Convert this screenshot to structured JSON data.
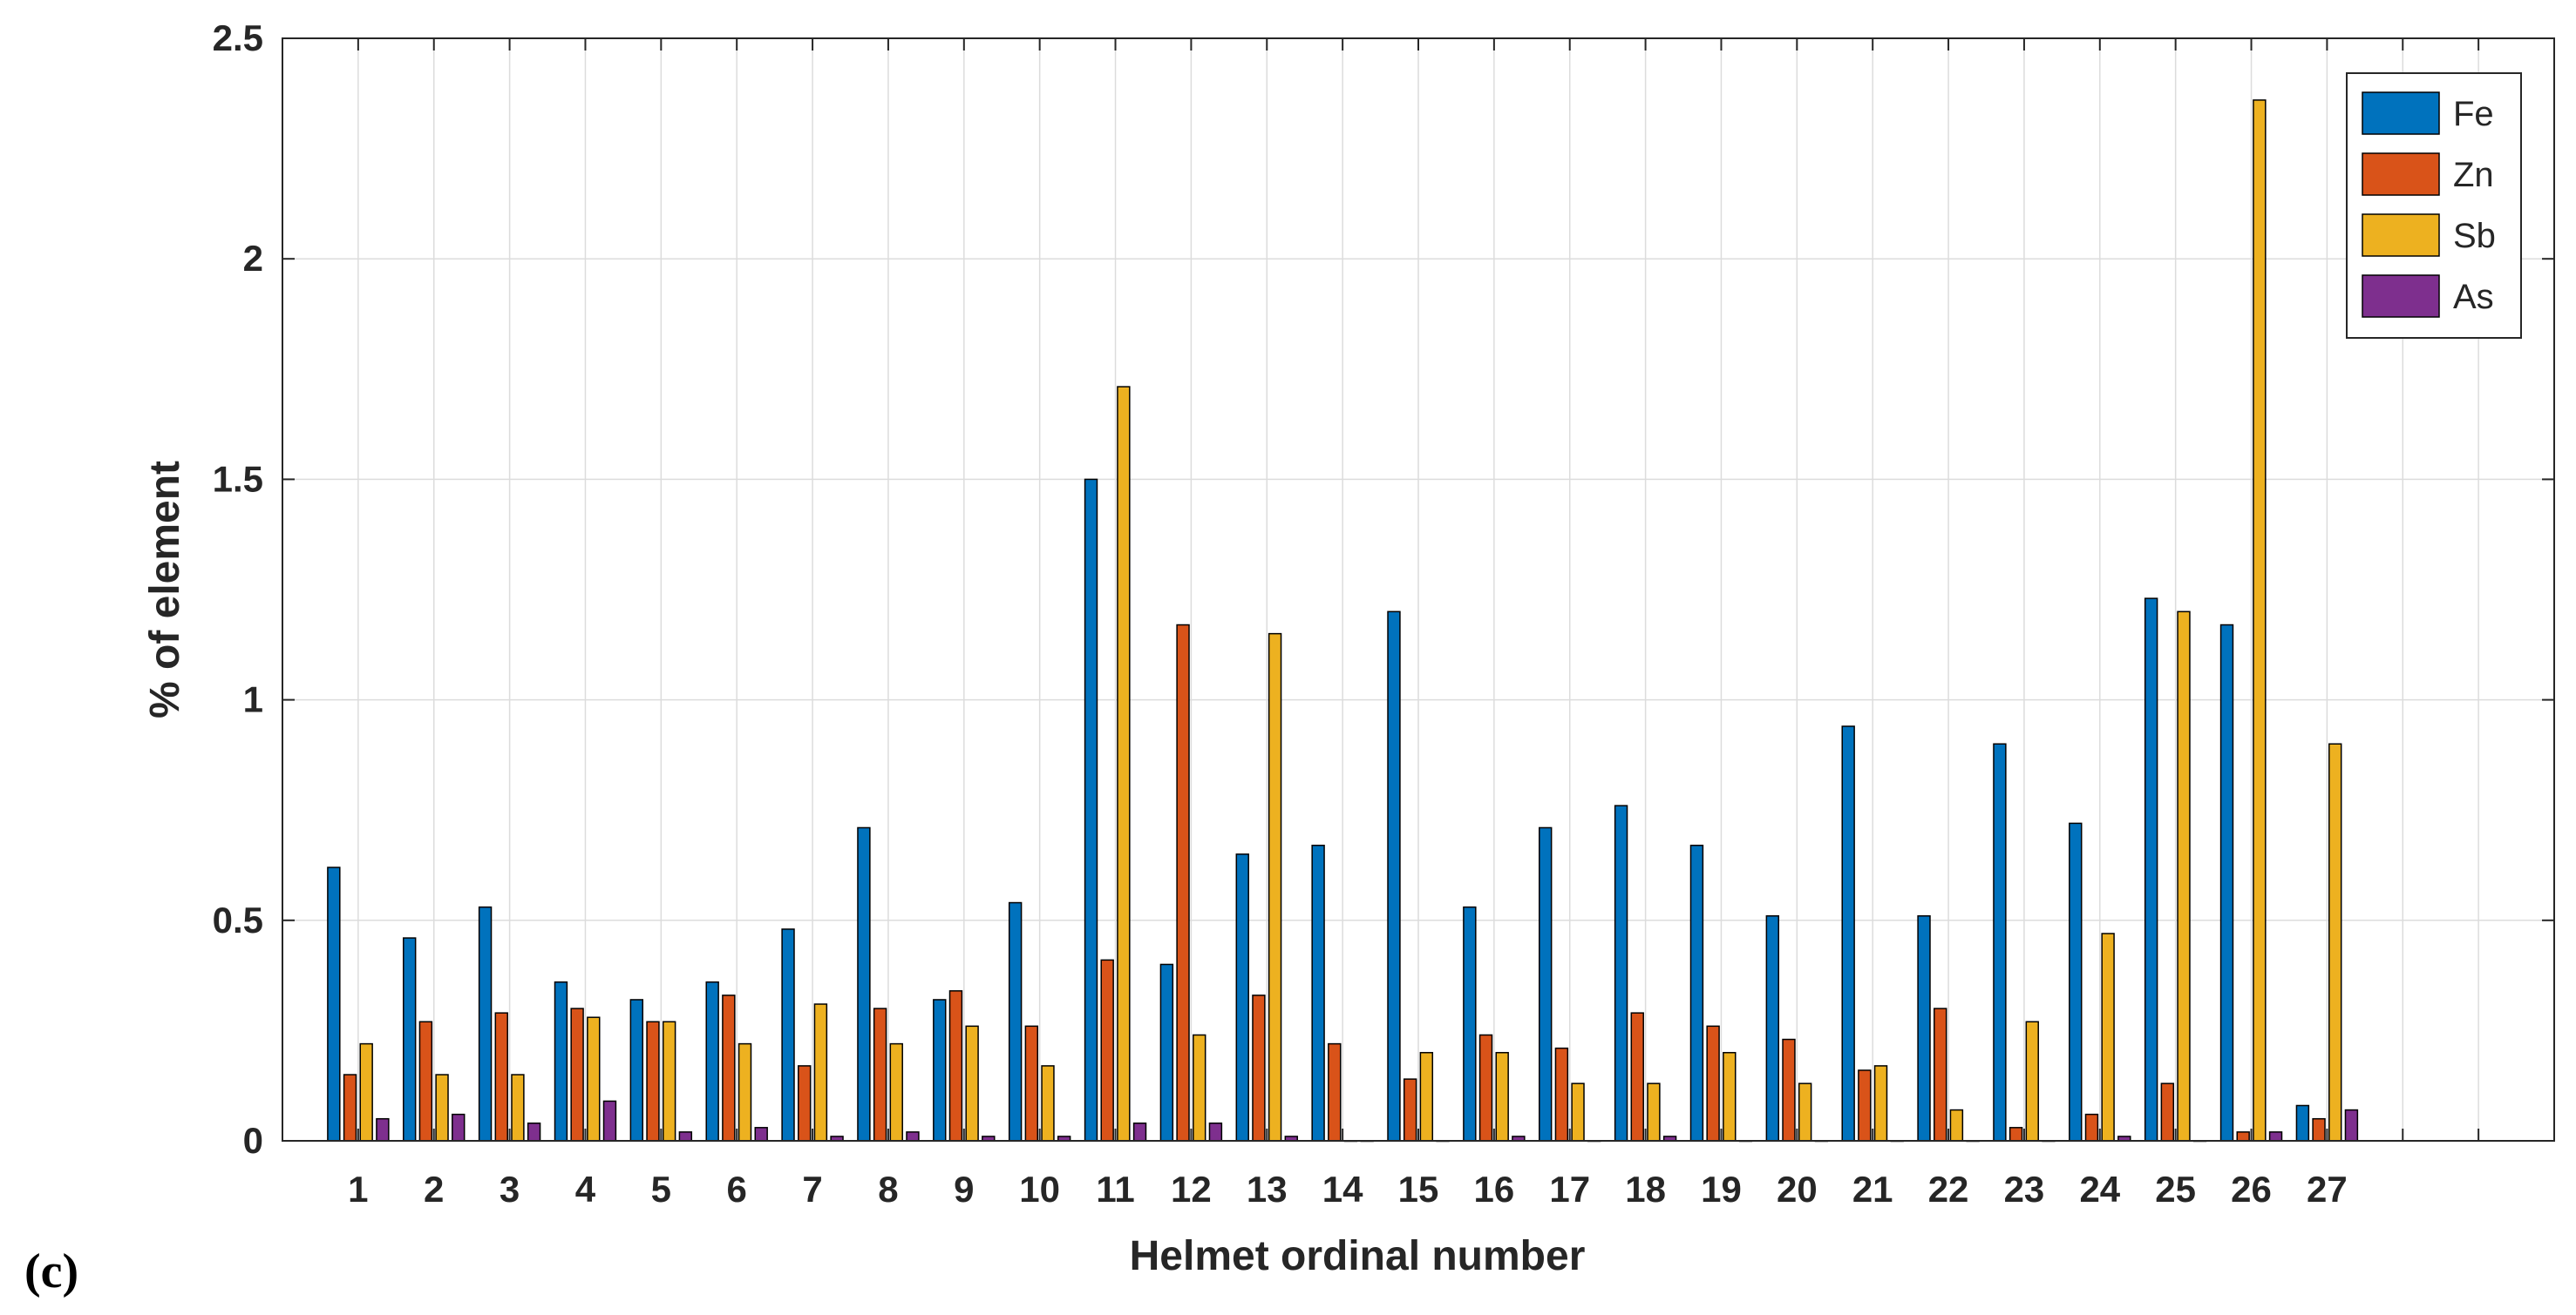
{
  "panel_label": "(c)",
  "chart_data": {
    "type": "bar",
    "xlabel": "Helmet ordinal number",
    "ylabel": "% of element",
    "categories": [
      "1",
      "2",
      "3",
      "4",
      "5",
      "6",
      "7",
      "8",
      "9",
      "10",
      "11",
      "12",
      "13",
      "14",
      "15",
      "16",
      "17",
      "18",
      "19",
      "20",
      "21",
      "22",
      "23",
      "24",
      "25",
      "26",
      "27"
    ],
    "xlim": [
      0,
      30
    ],
    "ylim": [
      0,
      2.5
    ],
    "yticks": [
      0,
      0.5,
      1,
      1.5,
      2,
      2.5
    ],
    "ytick_labels": [
      "0",
      "0.5",
      "1",
      "1.5",
      "2",
      "2.5"
    ],
    "grid": true,
    "legend_position": "top-right",
    "series": [
      {
        "name": "Fe",
        "color": "#0072BD",
        "values": [
          0.62,
          0.46,
          0.53,
          0.36,
          0.32,
          0.36,
          0.48,
          0.71,
          0.32,
          0.54,
          1.5,
          0.4,
          0.65,
          0.67,
          1.2,
          0.53,
          0.71,
          0.76,
          0.67,
          0.51,
          0.94,
          0.51,
          0.9,
          0.72,
          1.23,
          1.17,
          0.08
        ]
      },
      {
        "name": "Zn",
        "color": "#D95319",
        "values": [
          0.15,
          0.27,
          0.29,
          0.3,
          0.27,
          0.33,
          0.17,
          0.3,
          0.34,
          0.26,
          0.41,
          1.17,
          0.33,
          0.22,
          0.14,
          0.24,
          0.21,
          0.29,
          0.26,
          0.23,
          0.16,
          0.3,
          0.03,
          0.06,
          0.13,
          0.02,
          0.05
        ]
      },
      {
        "name": "Sb",
        "color": "#EDB120",
        "values": [
          0.22,
          0.15,
          0.15,
          0.28,
          0.27,
          0.22,
          0.31,
          0.22,
          0.26,
          0.17,
          1.71,
          0.24,
          1.15,
          0.0,
          0.2,
          0.2,
          0.13,
          0.13,
          0.2,
          0.13,
          0.17,
          0.07,
          0.27,
          0.47,
          1.2,
          2.36,
          0.9
        ]
      },
      {
        "name": "As",
        "color": "#7E2F8E",
        "values": [
          0.05,
          0.06,
          0.04,
          0.09,
          0.02,
          0.03,
          0.01,
          0.02,
          0.01,
          0.01,
          0.04,
          0.04,
          0.01,
          0.0,
          0.0,
          0.01,
          0.0,
          0.01,
          0.0,
          0.0,
          0.0,
          0.0,
          0.0,
          0.01,
          0.0,
          0.02,
          0.07
        ]
      }
    ]
  }
}
